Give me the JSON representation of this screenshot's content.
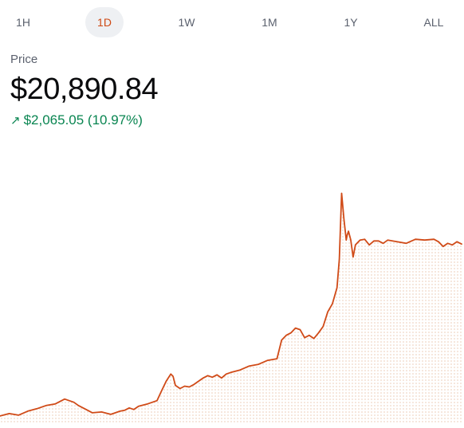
{
  "range_tabs": [
    {
      "label": "1H",
      "active": false
    },
    {
      "label": "1D",
      "active": true
    },
    {
      "label": "1W",
      "active": false
    },
    {
      "label": "1M",
      "active": false
    },
    {
      "label": "1Y",
      "active": false
    },
    {
      "label": "ALL",
      "active": false
    }
  ],
  "price": {
    "label": "Price",
    "value": "$20,890.84",
    "change_arrow": "↗",
    "change_text": "$2,065.05 (10.97%)"
  },
  "colors": {
    "line": "#d04a17",
    "fill_dots": "#f1d9c8",
    "positive": "#098551",
    "active_tab_text": "#cf4a15",
    "active_tab_bg": "#eef0f3"
  },
  "chart_data": {
    "type": "area",
    "title": "",
    "xlabel": "",
    "ylabel": "",
    "grid": false,
    "x_range": [
      0,
      1
    ],
    "ylim": [
      18700,
      21950
    ],
    "x": [
      0.0,
      0.02,
      0.04,
      0.06,
      0.08,
      0.1,
      0.12,
      0.14,
      0.16,
      0.17,
      0.18,
      0.19,
      0.2,
      0.22,
      0.24,
      0.26,
      0.27,
      0.28,
      0.29,
      0.3,
      0.32,
      0.34,
      0.35,
      0.36,
      0.37,
      0.375,
      0.38,
      0.39,
      0.4,
      0.41,
      0.42,
      0.44,
      0.45,
      0.46,
      0.47,
      0.48,
      0.49,
      0.5,
      0.52,
      0.54,
      0.56,
      0.58,
      0.6,
      0.61,
      0.62,
      0.63,
      0.64,
      0.65,
      0.66,
      0.67,
      0.68,
      0.69,
      0.7,
      0.71,
      0.72,
      0.73,
      0.735,
      0.74,
      0.745,
      0.75,
      0.752,
      0.755,
      0.76,
      0.765,
      0.77,
      0.78,
      0.79,
      0.8,
      0.81,
      0.82,
      0.83,
      0.84,
      0.86,
      0.88,
      0.9,
      0.92,
      0.94,
      0.95,
      0.96,
      0.97,
      0.98,
      0.99,
      1.0
    ],
    "values": [
      18760,
      18790,
      18770,
      18820,
      18850,
      18890,
      18910,
      18970,
      18930,
      18890,
      18860,
      18830,
      18800,
      18810,
      18780,
      18820,
      18830,
      18860,
      18840,
      18880,
      18910,
      18950,
      19070,
      19190,
      19280,
      19250,
      19140,
      19100,
      19130,
      19120,
      19150,
      19230,
      19260,
      19240,
      19270,
      19230,
      19280,
      19300,
      19330,
      19380,
      19400,
      19450,
      19470,
      19700,
      19760,
      19790,
      19850,
      19830,
      19730,
      19760,
      19720,
      19790,
      19870,
      20050,
      20150,
      20350,
      20700,
      21520,
      21200,
      20940,
      21000,
      21050,
      20940,
      20730,
      20880,
      20940,
      20950,
      20880,
      20930,
      20930,
      20900,
      20940,
      20920,
      20900,
      20950,
      20940,
      20950,
      20920,
      20860,
      20900,
      20880,
      20920,
      20890.84
    ]
  }
}
